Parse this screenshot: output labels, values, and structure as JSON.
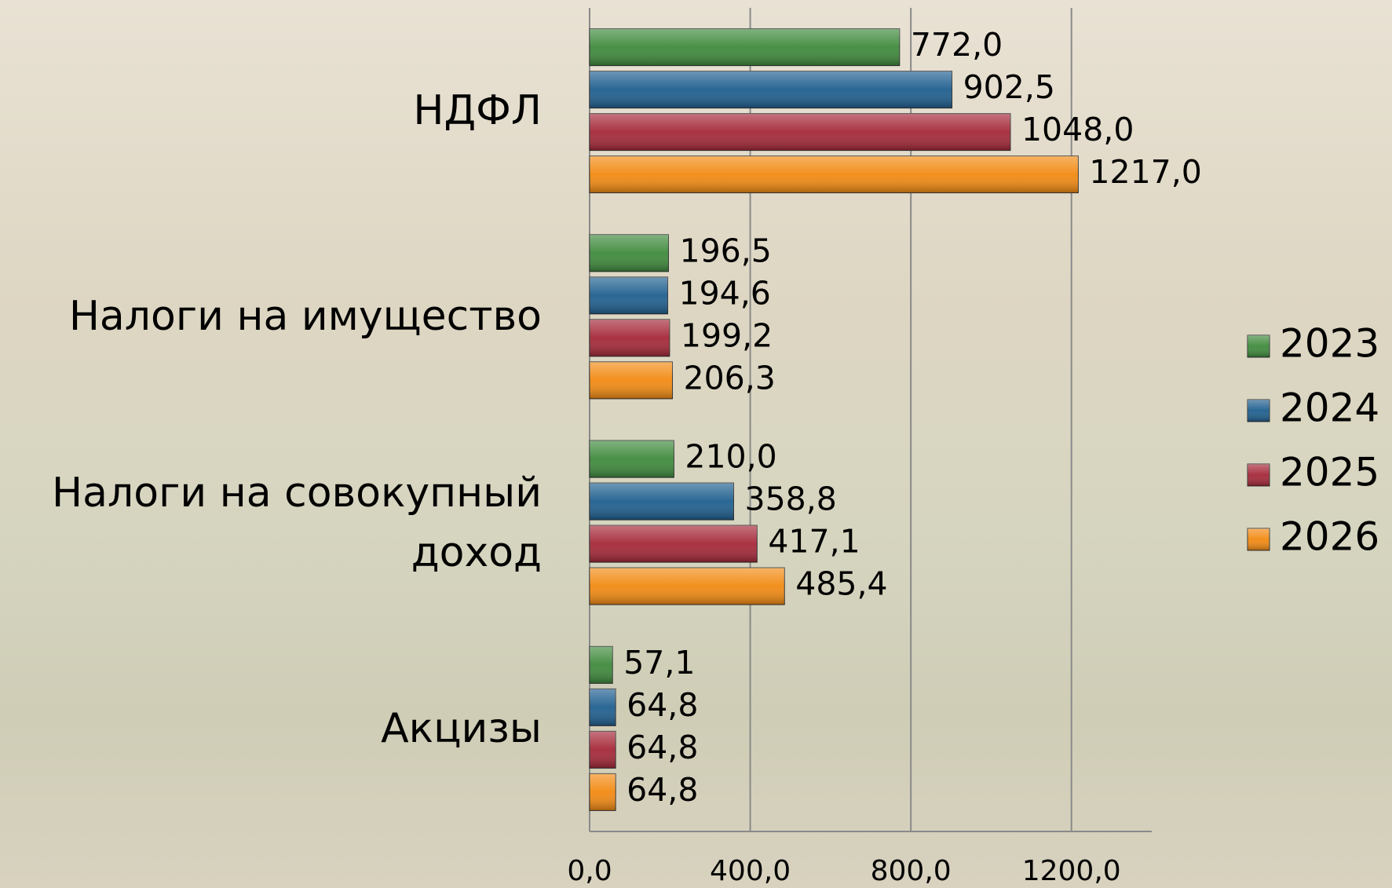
{
  "chart_data": {
    "type": "bar",
    "orientation": "horizontal",
    "categories": [
      "НДФЛ",
      "Налоги на имущество",
      "Налоги на совокупный доход",
      "Акцизы"
    ],
    "series": [
      {
        "name": "2023",
        "color": "#3f8a3c",
        "values": [
          772.0,
          196.5,
          210.0,
          57.1
        ],
        "value_labels": [
          "772,0",
          "196,5",
          "210,0",
          "57,1"
        ]
      },
      {
        "name": "2024",
        "color": "#1f5f8f",
        "values": [
          902.5,
          194.6,
          358.8,
          64.8
        ],
        "value_labels": [
          "902,5",
          "194,6",
          "358,8",
          "64,8"
        ]
      },
      {
        "name": "2025",
        "color": "#a52838",
        "values": [
          1048.0,
          199.2,
          417.1,
          64.8
        ],
        "value_labels": [
          "1048,0",
          "199,2",
          "417,1",
          "64,8"
        ]
      },
      {
        "name": "2026",
        "color": "#f28a12",
        "values": [
          1217.0,
          206.3,
          485.4,
          64.8
        ],
        "value_labels": [
          "1217,0",
          "206,3",
          "485,4",
          "64,8"
        ]
      }
    ],
    "xlim": [
      0,
      1400
    ],
    "xticks": [
      {
        "value": 0,
        "label": "0,0"
      },
      {
        "value": 400,
        "label": "400,0"
      },
      {
        "value": 800,
        "label": "800,0"
      },
      {
        "value": 1200,
        "label": "1200,0"
      }
    ],
    "grid": true,
    "legend": "right"
  }
}
